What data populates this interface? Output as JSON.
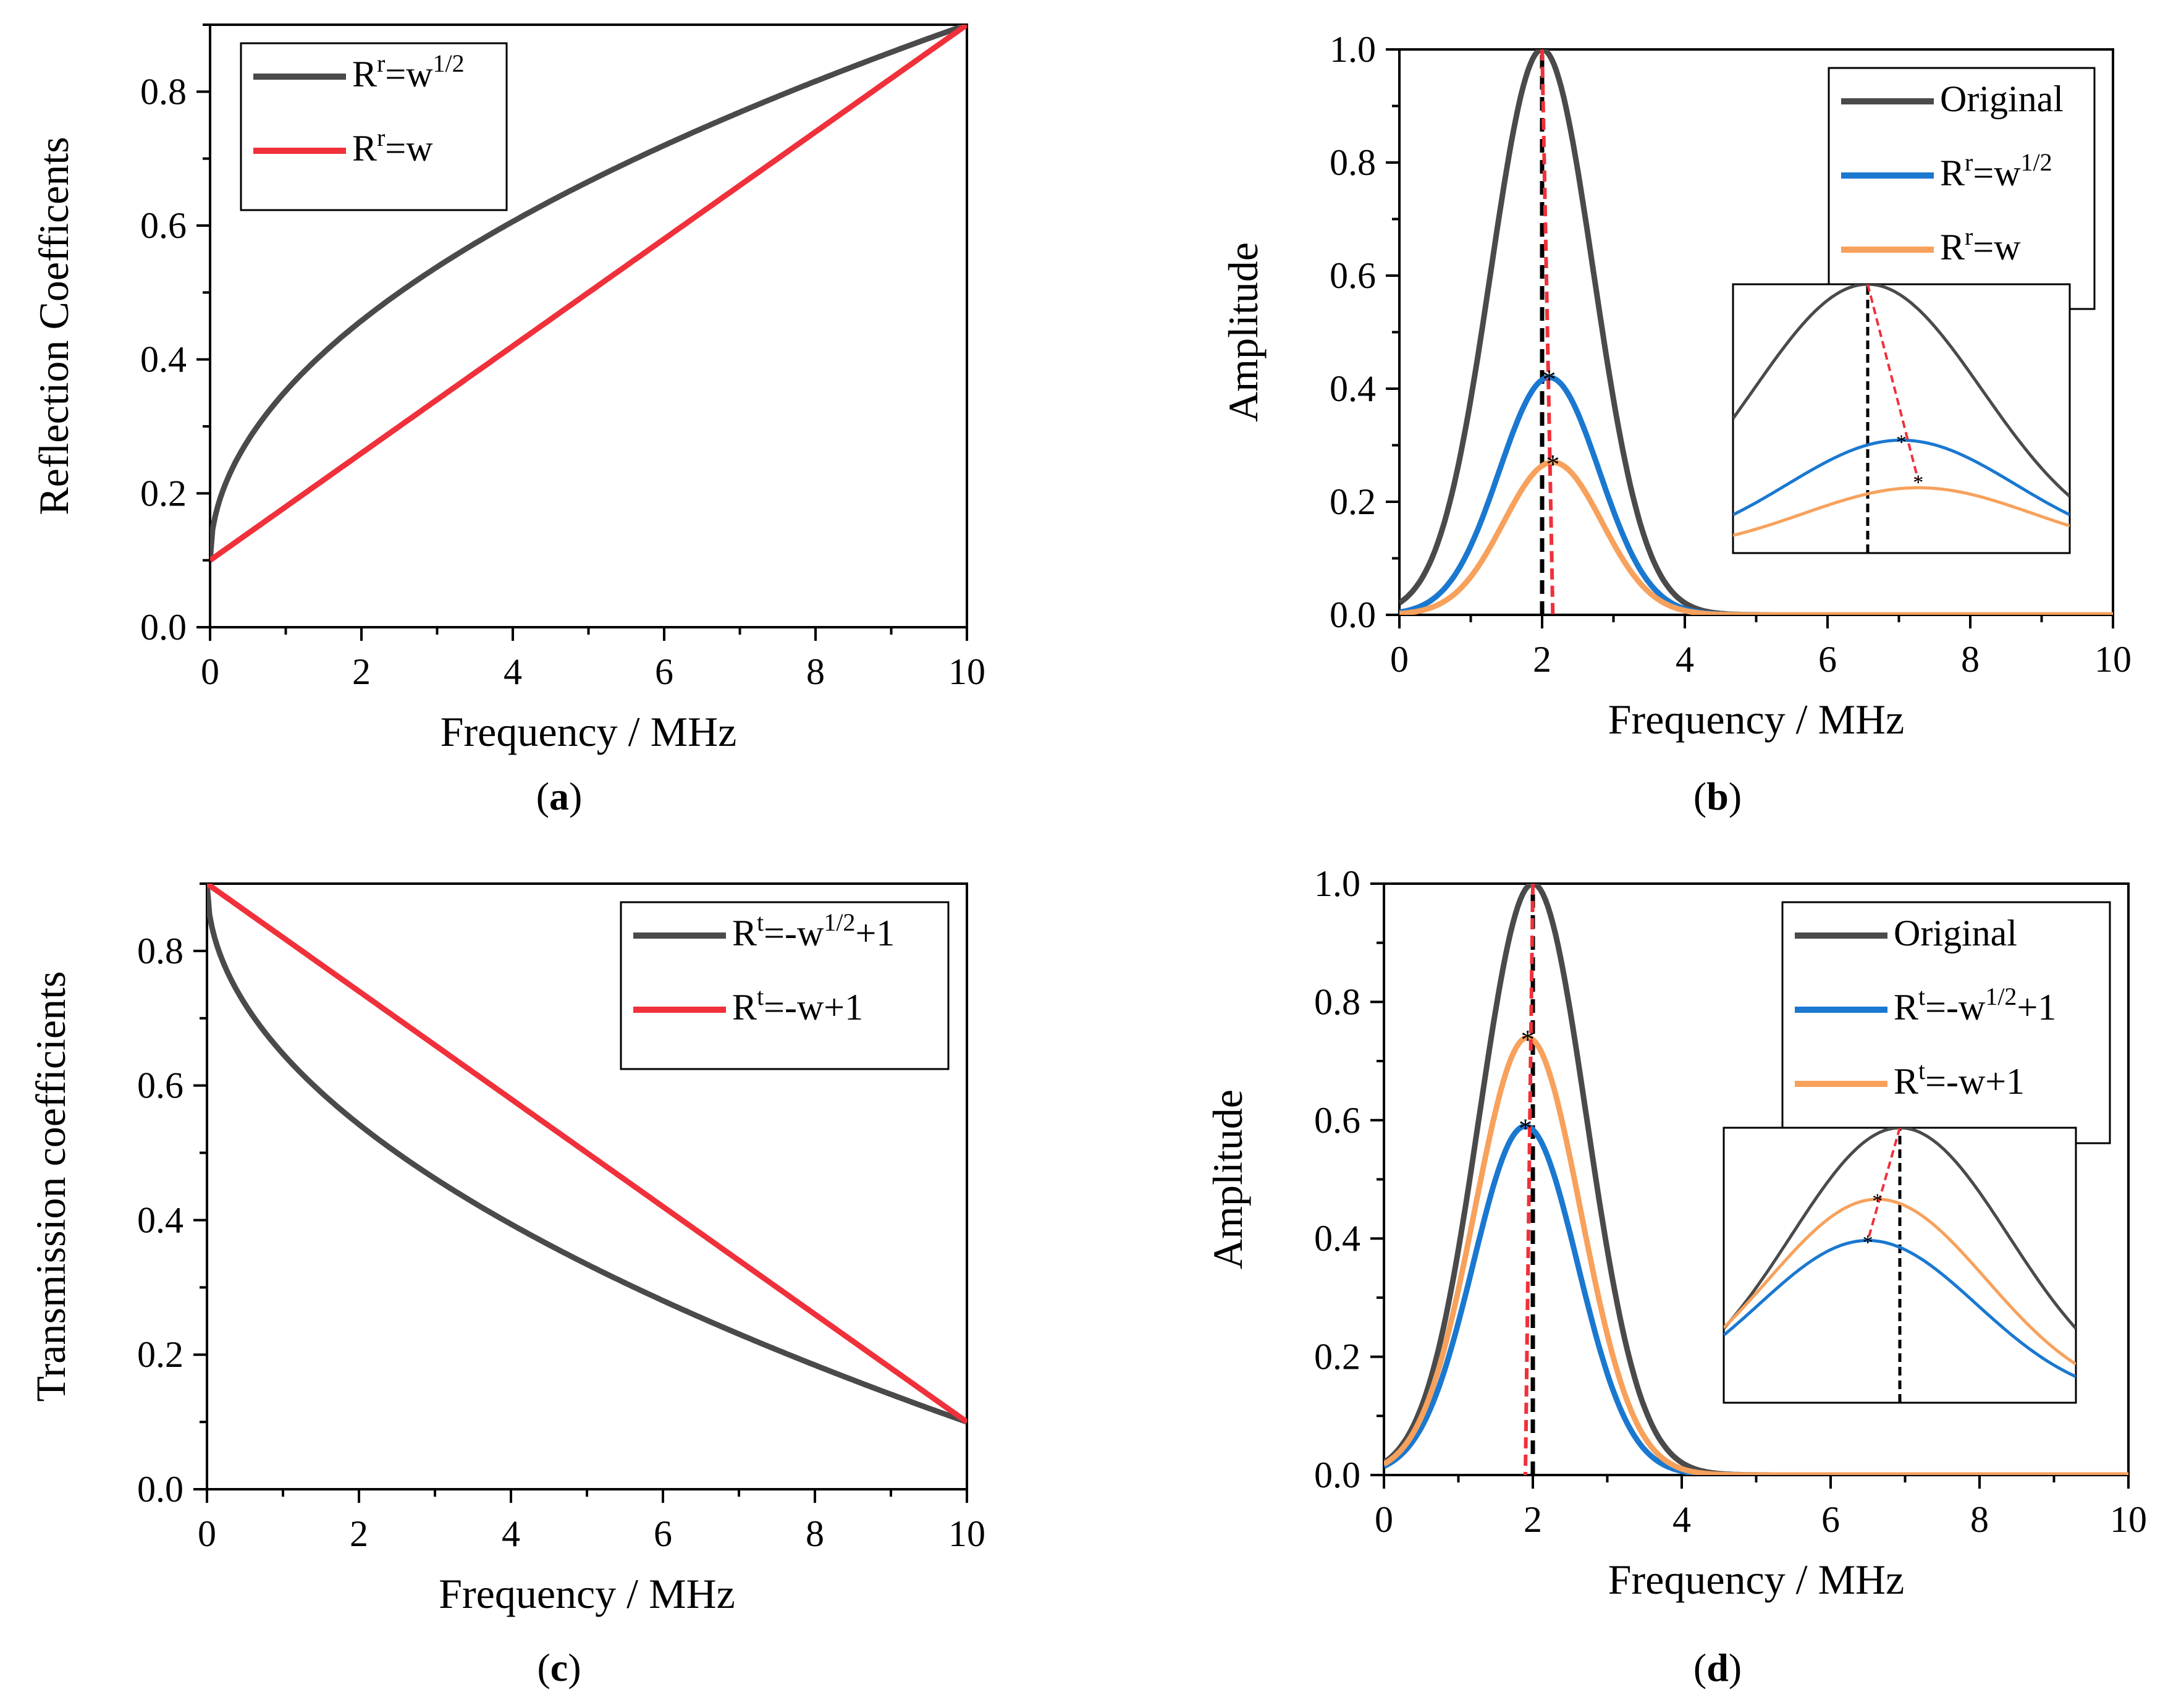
{
  "colors": {
    "original": "#4a4a4a",
    "red": "#f0303a",
    "blue": "#1a78d0",
    "orange": "#f7a15c",
    "black_dash": "#000000",
    "red_dash": "#f0303a"
  },
  "chart_data": [
    {
      "id": "a",
      "type": "line",
      "caption": "(a)",
      "caption_letter": "a",
      "xlabel": "Frequency / MHz",
      "ylabel": "Reflection Coefficents",
      "xlim": [
        0,
        10
      ],
      "ylim": [
        0,
        0.9
      ],
      "xticks": [
        "0",
        "2",
        "4",
        "6",
        "8",
        "10"
      ],
      "yticks": [
        "0.0",
        "0.2",
        "0.4",
        "0.6",
        "0.8"
      ],
      "legend_position": "top-left",
      "series": [
        {
          "name": "R^r=w^1/2",
          "legend_base": "R",
          "legend_sup": "r",
          "legend_mid": "=w",
          "legend_sup2": "1/2",
          "legend_tail": "",
          "color_key": "original",
          "formula": "0.1+0.8*sqrt(x/10)",
          "x": [
            0,
            1,
            2,
            3,
            4,
            5,
            6,
            7,
            8,
            9,
            10
          ],
          "y": [
            0.1,
            0.353,
            0.458,
            0.538,
            0.606,
            0.666,
            0.72,
            0.769,
            0.816,
            0.859,
            0.9
          ]
        },
        {
          "name": "R^r=w",
          "legend_base": "R",
          "legend_sup": "r",
          "legend_mid": "=w",
          "legend_sup2": "",
          "legend_tail": "",
          "color_key": "red",
          "formula": "0.1+0.08*x",
          "x": [
            0,
            10
          ],
          "y": [
            0.1,
            0.9
          ]
        }
      ]
    },
    {
      "id": "b",
      "type": "line",
      "caption": "(b)",
      "caption_letter": "b",
      "xlabel": "Frequency / MHz",
      "ylabel": "Amplitude",
      "xlim": [
        0,
        10
      ],
      "ylim": [
        0,
        1.0
      ],
      "xticks": [
        "0",
        "2",
        "4",
        "6",
        "8",
        "10"
      ],
      "yticks": [
        "0.0",
        "0.2",
        "0.4",
        "0.6",
        "0.8",
        "1.0"
      ],
      "legend_position": "top-right",
      "inset": true,
      "series": [
        {
          "name": "Original",
          "legend_base": "Original",
          "legend_sup": "",
          "legend_mid": "",
          "legend_sup2": "",
          "legend_tail": "",
          "color_key": "original",
          "peak_x": 2.0,
          "peak_y": 1.0,
          "sigma": 0.72
        },
        {
          "name": "R^r=w^1/2",
          "legend_base": "R",
          "legend_sup": "r",
          "legend_mid": "=w",
          "legend_sup2": "1/2",
          "legend_tail": "",
          "color_key": "blue",
          "peak_x": 2.1,
          "peak_y": 0.42,
          "sigma": 0.7
        },
        {
          "name": "R^r=w",
          "legend_base": "R",
          "legend_sup": "r",
          "legend_mid": "=w",
          "legend_sup2": "",
          "legend_tail": "",
          "color_key": "orange",
          "peak_x": 2.15,
          "peak_y": 0.27,
          "sigma": 0.69
        }
      ],
      "markers": {
        "black_dash_x": 2.0,
        "red_dash_from": [
          2.0,
          1.0
        ],
        "red_dash_to": [
          2.15,
          0.0
        ]
      }
    },
    {
      "id": "c",
      "type": "line",
      "caption": "(c)",
      "caption_letter": "c",
      "xlabel": "Frequency / MHz",
      "ylabel": "Transmission coefficients",
      "xlim": [
        0,
        10
      ],
      "ylim": [
        0,
        0.9
      ],
      "xticks": [
        "0",
        "2",
        "4",
        "6",
        "8",
        "10"
      ],
      "yticks": [
        "0.0",
        "0.2",
        "0.4",
        "0.6",
        "0.8"
      ],
      "legend_position": "top-right",
      "series": [
        {
          "name": "R^t=-w^1/2+1",
          "legend_base": "R",
          "legend_sup": "t",
          "legend_mid": "=-w",
          "legend_sup2": "1/2",
          "legend_tail": "+1",
          "color_key": "original",
          "formula": "0.9-0.8*sqrt(x/10)",
          "x": [
            0,
            1,
            2,
            3,
            4,
            5,
            6,
            7,
            8,
            9,
            10
          ],
          "y": [
            0.9,
            0.647,
            0.542,
            0.462,
            0.394,
            0.334,
            0.28,
            0.231,
            0.184,
            0.141,
            0.1
          ]
        },
        {
          "name": "R^t=-w+1",
          "legend_base": "R",
          "legend_sup": "t",
          "legend_mid": "=-w+1",
          "legend_sup2": "",
          "legend_tail": "",
          "color_key": "red",
          "formula": "0.9-0.08*x",
          "x": [
            0,
            10
          ],
          "y": [
            0.9,
            0.1
          ]
        }
      ]
    },
    {
      "id": "d",
      "type": "line",
      "caption": "(d)",
      "caption_letter": "d",
      "xlabel": "Frequency / MHz",
      "ylabel": "Amplitude",
      "xlim": [
        0,
        10
      ],
      "ylim": [
        0,
        1.0
      ],
      "xticks": [
        "0",
        "2",
        "4",
        "6",
        "8",
        "10"
      ],
      "yticks": [
        "0.0",
        "0.2",
        "0.4",
        "0.6",
        "0.8",
        "1.0"
      ],
      "legend_position": "top-right",
      "inset": true,
      "series": [
        {
          "name": "Original",
          "legend_base": "Original",
          "legend_sup": "",
          "legend_mid": "",
          "legend_sup2": "",
          "legend_tail": "",
          "color_key": "original",
          "peak_x": 2.0,
          "peak_y": 1.0,
          "sigma": 0.72
        },
        {
          "name": "R^t=-w^1/2+1",
          "legend_base": "R",
          "legend_sup": "t",
          "legend_mid": "=-w",
          "legend_sup2": "1/2",
          "legend_tail": "+1",
          "color_key": "blue",
          "peak_x": 1.9,
          "peak_y": 0.59,
          "sigma": 0.7
        },
        {
          "name": "R^t=-w+1",
          "legend_base": "R",
          "legend_sup": "t",
          "legend_mid": "=-w+1",
          "legend_sup2": "",
          "legend_tail": "",
          "color_key": "orange",
          "peak_x": 1.93,
          "peak_y": 0.74,
          "sigma": 0.71
        }
      ],
      "markers": {
        "black_dash_x": 2.0,
        "red_dash_from": [
          2.0,
          1.0
        ],
        "red_dash_to": [
          1.9,
          0.0
        ]
      }
    }
  ]
}
